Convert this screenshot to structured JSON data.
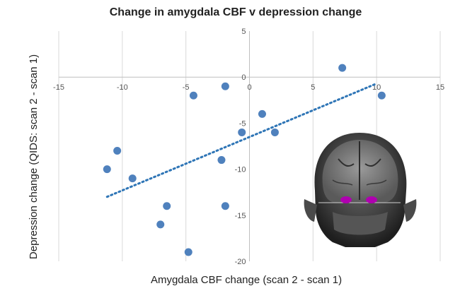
{
  "chart_data": {
    "type": "scatter",
    "title": "Change in amygdala CBF v depression change",
    "xlabel": "Amygdala CBF change (scan 2 - scan 1)",
    "ylabel": "Depression change (QIDS: scan 2 - scan 1)",
    "xlim": [
      -15,
      15
    ],
    "ylim": [
      -20,
      5
    ],
    "x_ticks": [
      -15,
      -10,
      -5,
      0,
      5,
      10,
      15
    ],
    "y_ticks": [
      5,
      0,
      -5,
      -10,
      -15,
      -20
    ],
    "grid": "vertical",
    "points": [
      {
        "x": -11.2,
        "y": -10
      },
      {
        "x": -10.4,
        "y": -8
      },
      {
        "x": -9.2,
        "y": -11
      },
      {
        "x": -7.0,
        "y": -16
      },
      {
        "x": -6.5,
        "y": -14
      },
      {
        "x": -4.8,
        "y": -19
      },
      {
        "x": -4.4,
        "y": -2
      },
      {
        "x": -2.2,
        "y": -9
      },
      {
        "x": -1.9,
        "y": -1
      },
      {
        "x": -1.9,
        "y": -14
      },
      {
        "x": -0.6,
        "y": -6
      },
      {
        "x": 1.0,
        "y": -4
      },
      {
        "x": 2.0,
        "y": -6
      },
      {
        "x": 7.3,
        "y": 1
      },
      {
        "x": 10.4,
        "y": -2
      }
    ],
    "trendline": {
      "style": "dotted",
      "x": [
        -11.2,
        10.0
      ],
      "y": [
        -13.0,
        -0.7
      ]
    },
    "colors": {
      "point": "#4f81bd",
      "trendline": "#2e75b6",
      "grid": "#d9d9d9",
      "axis": "#bfbfbf"
    },
    "inset_image": "brain-mri-coronal-slice"
  }
}
